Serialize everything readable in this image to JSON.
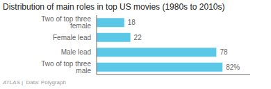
{
  "chart_data": {
    "type": "bar",
    "title": "Distribution of main roles in top US movies (1980s to 2010s)",
    "categories": [
      "Two of top three male",
      "Male lead",
      "Female lead",
      "Two of top three female"
    ],
    "values": [
      82,
      78,
      22,
      18
    ],
    "value_labels": [
      "82%",
      "78",
      "22",
      "18"
    ],
    "data_labels": true,
    "color": "#5bc8e8",
    "orientation": "horizontal",
    "xlim": [
      0,
      100
    ],
    "tick_labels": false,
    "grid": false,
    "annotations": [
      "ATLAS",
      " |  Data: Polygraph"
    ]
  }
}
